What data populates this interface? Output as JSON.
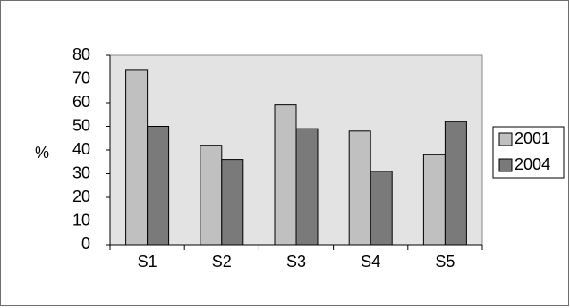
{
  "chart_data": {
    "type": "bar",
    "title": "",
    "xlabel": "",
    "ylabel": "%",
    "ylim": [
      0,
      80
    ],
    "yticks": [
      0,
      10,
      20,
      30,
      40,
      50,
      60,
      70,
      80
    ],
    "categories": [
      "S1",
      "S2",
      "S3",
      "S4",
      "S5"
    ],
    "series": [
      {
        "name": "2001",
        "values": [
          74,
          42,
          59,
          48,
          38
        ],
        "color": "#c0c0c0"
      },
      {
        "name": "2004",
        "values": [
          50,
          36,
          49,
          31,
          52
        ],
        "color": "#7a7a7a"
      }
    ],
    "grid": false,
    "plot_background": "#e3e3e3",
    "legend": "right"
  }
}
